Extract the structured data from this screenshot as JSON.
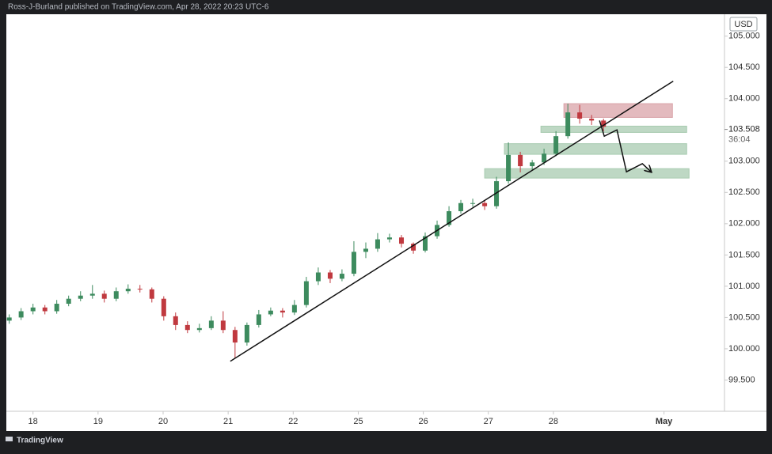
{
  "header": "Ross-J-Burland published on TradingView.com, Apr 28, 2022 20:23 UTC-6",
  "footer": "TradingView",
  "chart_data": {
    "type": "candlestick",
    "currency": "USD",
    "up_color": "#3d8b5e",
    "down_color": "#c0393f",
    "grid": false,
    "xlim": [
      -0.41,
      10.63
    ],
    "ylim": [
      99.0,
      105.35
    ],
    "xticks": [
      {
        "value": 0,
        "label": "18"
      },
      {
        "value": 1,
        "label": "19"
      },
      {
        "value": 2,
        "label": "20"
      },
      {
        "value": 3,
        "label": "21"
      },
      {
        "value": 4,
        "label": "22"
      },
      {
        "value": 5,
        "label": "25"
      },
      {
        "value": 6,
        "label": "26"
      },
      {
        "value": 7,
        "label": "27"
      },
      {
        "value": 8,
        "label": "28"
      },
      {
        "value": 9.7,
        "label": "May"
      }
    ],
    "yticks": [
      {
        "value": 105.0,
        "label": "105.000"
      },
      {
        "value": 104.5,
        "label": "104.500"
      },
      {
        "value": 104.0,
        "label": "104.000"
      },
      {
        "value": 103.0,
        "label": "103.000"
      },
      {
        "value": 102.5,
        "label": "102.500"
      },
      {
        "value": 102.0,
        "label": "102.000"
      },
      {
        "value": 101.5,
        "label": "101.500"
      },
      {
        "value": 101.0,
        "label": "101.000"
      },
      {
        "value": 100.5,
        "label": "100.500"
      },
      {
        "value": 100.0,
        "label": "100.000"
      },
      {
        "value": 99.5,
        "label": "99.500"
      }
    ],
    "last_price": 103.508,
    "countdown": "36:04",
    "x": [
      -0.365,
      -0.183,
      0,
      0.183,
      0.365,
      0.548,
      0.731,
      0.914,
      1.096,
      1.279,
      1.462,
      1.644,
      1.827,
      2.01,
      2.192,
      2.375,
      2.558,
      2.741,
      2.923,
      3.106,
      3.289,
      3.471,
      3.654,
      3.837,
      4.019,
      4.202,
      4.385,
      4.568,
      4.75,
      4.933,
      5.116,
      5.298,
      5.481,
      5.664,
      5.847,
      6.029,
      6.212,
      6.395,
      6.577,
      6.76,
      6.943,
      7.125,
      7.308,
      7.491,
      7.674,
      7.856,
      8.039,
      8.222,
      8.404,
      8.587,
      8.77
    ],
    "open": [
      100.45,
      100.5,
      100.6,
      100.66,
      100.6,
      100.72,
      100.8,
      100.85,
      100.88,
      100.8,
      100.92,
      100.96,
      100.95,
      100.8,
      100.52,
      100.38,
      100.3,
      100.33,
      100.45,
      100.3,
      100.1,
      100.38,
      100.55,
      100.61,
      100.58,
      100.7,
      101.08,
      101.22,
      101.12,
      101.2,
      101.55,
      101.6,
      101.75,
      101.78,
      101.68,
      101.57,
      101.8,
      101.98,
      102.2,
      102.33,
      102.33,
      102.28,
      102.68,
      103.1,
      102.92,
      102.98,
      103.12,
      103.4,
      103.78,
      103.68,
      103.65
    ],
    "high": [
      100.55,
      100.65,
      100.72,
      100.7,
      100.78,
      100.85,
      100.92,
      101.02,
      100.93,
      100.98,
      101.03,
      101.02,
      100.98,
      100.84,
      100.58,
      100.44,
      100.4,
      100.52,
      100.6,
      100.35,
      100.42,
      100.62,
      100.66,
      100.65,
      100.78,
      101.15,
      101.3,
      101.26,
      101.27,
      101.72,
      101.7,
      101.85,
      101.84,
      101.82,
      101.7,
      101.86,
      102.05,
      102.28,
      102.38,
      102.4,
      102.38,
      102.75,
      103.3,
      103.15,
      103.02,
      103.2,
      103.48,
      103.92,
      103.9,
      103.74,
      103.68
    ],
    "low": [
      100.4,
      100.46,
      100.55,
      100.55,
      100.56,
      100.68,
      100.76,
      100.8,
      100.74,
      100.76,
      100.88,
      100.9,
      100.74,
      100.45,
      100.3,
      100.25,
      100.26,
      100.3,
      100.25,
      99.85,
      100.05,
      100.34,
      100.52,
      100.5,
      100.54,
      100.66,
      101.02,
      101.05,
      101.08,
      101.16,
      101.45,
      101.55,
      101.7,
      101.62,
      101.52,
      101.54,
      101.76,
      101.95,
      102.16,
      102.27,
      102.22,
      102.24,
      102.64,
      102.82,
      102.86,
      102.94,
      103.08,
      103.36,
      103.6,
      103.58,
      103.48
    ],
    "close": [
      100.5,
      100.6,
      100.66,
      100.6,
      100.72,
      100.8,
      100.85,
      100.88,
      100.8,
      100.92,
      100.96,
      100.95,
      100.8,
      100.52,
      100.38,
      100.3,
      100.33,
      100.45,
      100.3,
      100.1,
      100.38,
      100.55,
      100.61,
      100.58,
      100.7,
      101.08,
      101.22,
      101.12,
      101.2,
      101.55,
      101.6,
      101.75,
      101.78,
      101.68,
      101.57,
      101.8,
      101.98,
      102.2,
      102.33,
      102.33,
      102.28,
      102.68,
      103.1,
      102.92,
      102.98,
      103.12,
      103.4,
      103.78,
      103.68,
      103.65,
      103.55
    ],
    "zones": [
      {
        "color": "#d9a3a8",
        "x": [
          8.161,
          9.83
        ],
        "y": [
          103.7,
          103.92
        ]
      },
      {
        "color": "#a8cbb0",
        "x": [
          7.808,
          10.049
        ],
        "y": [
          103.46,
          103.56
        ]
      },
      {
        "color": "#a8cbb0",
        "x": [
          7.247,
          10.049
        ],
        "y": [
          103.11,
          103.28
        ]
      },
      {
        "color": "#a8cbb0",
        "x": [
          6.943,
          10.085
        ],
        "y": [
          102.73,
          102.88
        ]
      }
    ],
    "trendline": {
      "x": [
        3.033,
        9.842
      ],
      "y": [
        99.8,
        104.28
      ]
    },
    "projection": {
      "x": [
        8.709,
        8.782,
        8.977,
        9.123,
        9.367,
        9.501
      ],
      "y": [
        103.65,
        103.4,
        103.5,
        102.83,
        102.96,
        102.83
      ]
    }
  }
}
